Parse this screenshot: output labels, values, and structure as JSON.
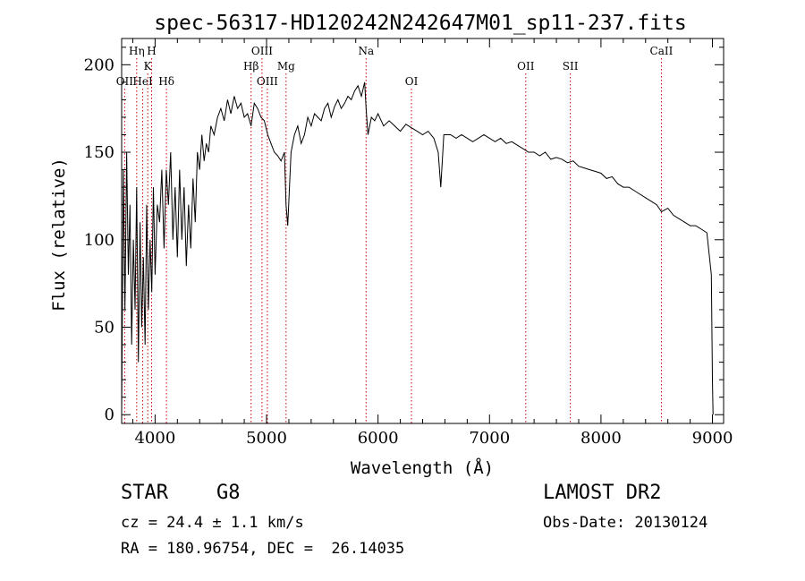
{
  "chart_data": {
    "type": "line",
    "title": "spec-56317-HD120242N242647M01_sp11-237.fits",
    "xlabel": "Wavelength (Å)",
    "ylabel": "Flux (relative)",
    "xlim": [
      3700,
      9100
    ],
    "ylim": [
      -5,
      215
    ],
    "xticks": [
      4000,
      5000,
      6000,
      7000,
      8000,
      9000
    ],
    "yticks": [
      0,
      50,
      100,
      150,
      200
    ],
    "grid": false,
    "line_color": "#000000",
    "marker_color": "#cc0000",
    "spectral_lines": [
      {
        "label": "OII",
        "x": 3727,
        "row": 3
      },
      {
        "label": "Hη",
        "x": 3835,
        "row": 1
      },
      {
        "label": "HeI",
        "x": 3889,
        "row": 3
      },
      {
        "label": "K",
        "x": 3934,
        "row": 2
      },
      {
        "label": "H",
        "x": 3969,
        "row": 1
      },
      {
        "label": "Hδ",
        "x": 4102,
        "row": 3
      },
      {
        "label": "Hβ",
        "x": 4861,
        "row": 2
      },
      {
        "label": "OIII",
        "x": 4959,
        "row": 1
      },
      {
        "label": "OIII",
        "x": 5007,
        "row": 3
      },
      {
        "label": "Mg",
        "x": 5175,
        "row": 2
      },
      {
        "label": "Na",
        "x": 5893,
        "row": 1
      },
      {
        "label": "OI",
        "x": 6300,
        "row": 3
      },
      {
        "label": "OII",
        "x": 7325,
        "row": 2
      },
      {
        "label": "SII",
        "x": 7725,
        "row": 2
      },
      {
        "label": "CaII",
        "x": 8542,
        "row": 1
      }
    ],
    "series": [
      {
        "x": [
          3700,
          3715,
          3730,
          3745,
          3760,
          3775,
          3790,
          3805,
          3820,
          3835,
          3850,
          3865,
          3880,
          3895,
          3910,
          3925,
          3940,
          3955,
          3970,
          3985,
          4000,
          4020,
          4040,
          4060,
          4080,
          4100,
          4120,
          4140,
          4160,
          4180,
          4200,
          4220,
          4240,
          4260,
          4280,
          4300,
          4320,
          4340,
          4360,
          4380,
          4400,
          4420,
          4440,
          4460,
          4480,
          4500,
          4530,
          4560,
          4590,
          4620,
          4650,
          4680,
          4710,
          4740,
          4770,
          4800,
          4830,
          4861,
          4890,
          4920,
          4950,
          4980,
          5010,
          5040,
          5070,
          5100,
          5130,
          5160,
          5175,
          5190,
          5220,
          5250,
          5280,
          5310,
          5340,
          5370,
          5400,
          5430,
          5460,
          5490,
          5520,
          5550,
          5580,
          5610,
          5640,
          5670,
          5700,
          5730,
          5760,
          5790,
          5820,
          5850,
          5880,
          5893,
          5910,
          5940,
          5970,
          6000,
          6050,
          6100,
          6150,
          6200,
          6250,
          6300,
          6350,
          6400,
          6450,
          6500,
          6540,
          6563,
          6590,
          6650,
          6700,
          6750,
          6800,
          6850,
          6900,
          6950,
          7000,
          7050,
          7100,
          7150,
          7200,
          7250,
          7300,
          7350,
          7400,
          7450,
          7500,
          7550,
          7600,
          7650,
          7700,
          7750,
          7800,
          7850,
          7900,
          7950,
          8000,
          8050,
          8100,
          8150,
          8200,
          8250,
          8300,
          8350,
          8400,
          8450,
          8500,
          8542,
          8600,
          8650,
          8700,
          8750,
          8800,
          8850,
          8900,
          8950,
          8990,
          9000,
          9005
        ],
        "y": [
          0,
          140,
          60,
          150,
          80,
          120,
          40,
          100,
          60,
          130,
          30,
          110,
          50,
          90,
          40,
          120,
          60,
          100,
          70,
          130,
          80,
          120,
          110,
          140,
          95,
          140,
          120,
          150,
          100,
          130,
          90,
          140,
          100,
          130,
          85,
          120,
          95,
          135,
          110,
          150,
          140,
          160,
          145,
          155,
          150,
          165,
          160,
          170,
          175,
          168,
          180,
          172,
          182,
          175,
          178,
          170,
          172,
          165,
          178,
          175,
          170,
          168,
          160,
          155,
          150,
          148,
          145,
          150,
          120,
          108,
          150,
          160,
          165,
          155,
          160,
          170,
          165,
          172,
          170,
          168,
          175,
          178,
          170,
          176,
          180,
          175,
          178,
          182,
          180,
          185,
          188,
          182,
          190,
          175,
          160,
          170,
          168,
          172,
          165,
          168,
          165,
          162,
          166,
          164,
          162,
          160,
          162,
          158,
          150,
          130,
          160,
          160,
          158,
          160,
          158,
          156,
          158,
          160,
          158,
          156,
          158,
          155,
          156,
          154,
          152,
          150,
          150,
          148,
          150,
          146,
          147,
          146,
          144,
          145,
          142,
          141,
          140,
          139,
          138,
          135,
          136,
          132,
          130,
          130,
          128,
          126,
          124,
          122,
          120,
          116,
          118,
          114,
          112,
          110,
          108,
          108,
          106,
          104,
          80,
          20,
          0
        ]
      }
    ]
  },
  "info": {
    "type_label": "STAR",
    "subclass": "G8",
    "cz": "cz = 24.4 ± 1.1 km/s",
    "radec": "RA = 180.96754, DEC =  26.14035",
    "survey": "LAMOST DR2",
    "obsdate": "Obs-Date: 20130124"
  }
}
